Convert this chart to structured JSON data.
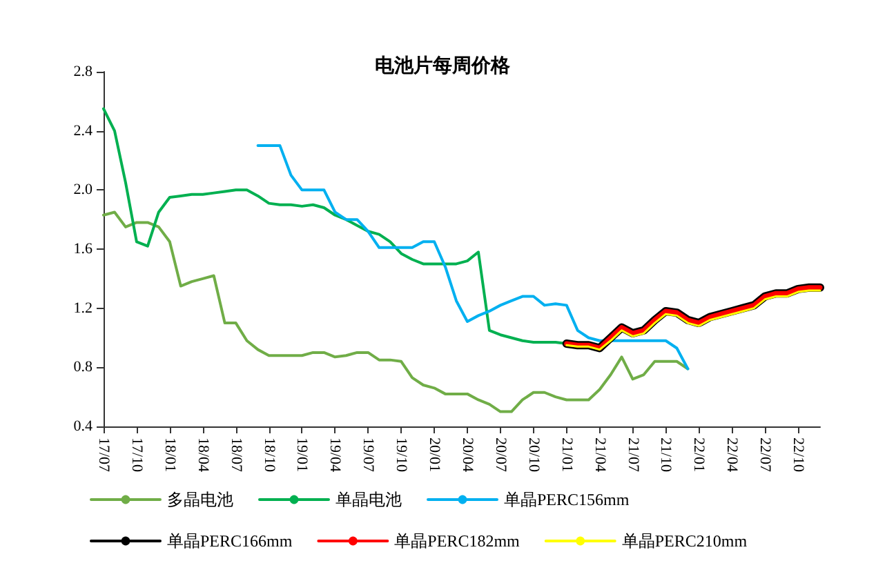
{
  "chart_data": {
    "type": "line",
    "title": "电池片每周价格",
    "categories": [
      "17/07",
      null,
      null,
      "17/10",
      null,
      null,
      "18/01",
      null,
      null,
      "18/04",
      null,
      null,
      "18/07",
      null,
      null,
      "18/10",
      null,
      null,
      "19/01",
      null,
      null,
      "19/04",
      null,
      null,
      "19/07",
      null,
      null,
      "19/10",
      null,
      null,
      "20/01",
      null,
      null,
      "20/04",
      null,
      null,
      "20/07",
      null,
      null,
      "20/10",
      null,
      null,
      "21/01",
      null,
      null,
      "21/04",
      null,
      null,
      "21/07",
      null,
      null,
      "21/10",
      null,
      null,
      "22/01",
      null,
      null,
      "22/04",
      null,
      null,
      "22/07",
      null,
      null,
      "22/10",
      null,
      null
    ],
    "series": [
      {
        "name": "多晶电池",
        "color": "#70ad47",
        "values": [
          1.83,
          1.85,
          1.75,
          1.78,
          1.78,
          1.75,
          1.65,
          1.35,
          1.38,
          1.4,
          1.42,
          1.1,
          1.1,
          0.98,
          0.92,
          0.88,
          0.88,
          0.88,
          0.88,
          0.9,
          0.9,
          0.87,
          0.88,
          0.9,
          0.9,
          0.85,
          0.85,
          0.84,
          0.73,
          0.68,
          0.66,
          0.62,
          0.62,
          0.62,
          0.58,
          0.55,
          0.5,
          0.5,
          0.58,
          0.63,
          0.63,
          0.6,
          0.58,
          0.58,
          0.58,
          0.65,
          0.75,
          0.87,
          0.72,
          0.75,
          0.84,
          0.84,
          0.84,
          0.79,
          null,
          null,
          null,
          null,
          null,
          null,
          null,
          null,
          null,
          null,
          null,
          null
        ]
      },
      {
        "name": "单晶电池",
        "color": "#00b050",
        "values": [
          2.55,
          2.4,
          2.05,
          1.65,
          1.62,
          1.85,
          1.95,
          1.96,
          1.97,
          1.97,
          1.98,
          1.99,
          2.0,
          2.0,
          1.96,
          1.91,
          1.9,
          1.9,
          1.89,
          1.9,
          1.88,
          1.83,
          1.8,
          1.76,
          1.72,
          1.7,
          1.65,
          1.57,
          1.53,
          1.5,
          1.5,
          1.5,
          1.5,
          1.52,
          1.58,
          1.05,
          1.02,
          1.0,
          0.98,
          0.97,
          0.97,
          0.97,
          0.96,
          null,
          null,
          null,
          null,
          null,
          null,
          null,
          null,
          null,
          null,
          null,
          null,
          null,
          null,
          null,
          null,
          null,
          null,
          null,
          null,
          null,
          null,
          null
        ]
      },
      {
        "name": "单晶PERC156mm",
        "color": "#00b0f0",
        "values": [
          null,
          null,
          null,
          null,
          null,
          null,
          null,
          null,
          null,
          null,
          null,
          null,
          null,
          null,
          2.3,
          2.3,
          2.3,
          2.1,
          2.0,
          2.0,
          2.0,
          1.85,
          1.8,
          1.8,
          1.72,
          1.61,
          1.61,
          1.61,
          1.61,
          1.65,
          1.65,
          1.48,
          1.25,
          1.11,
          1.15,
          1.18,
          1.22,
          1.25,
          1.28,
          1.28,
          1.22,
          1.23,
          1.22,
          1.05,
          1.0,
          0.98,
          0.98,
          0.98,
          0.98,
          0.98,
          0.98,
          0.98,
          0.93,
          0.79,
          null,
          null,
          null,
          null,
          null,
          null,
          null,
          null,
          null,
          null,
          null,
          null
        ]
      },
      {
        "name": "单晶PERC166mm",
        "color": "#000000",
        "values": [
          null,
          null,
          null,
          null,
          null,
          null,
          null,
          null,
          null,
          null,
          null,
          null,
          null,
          null,
          null,
          null,
          null,
          null,
          null,
          null,
          null,
          null,
          null,
          null,
          null,
          null,
          null,
          null,
          null,
          null,
          null,
          null,
          null,
          null,
          null,
          null,
          null,
          null,
          null,
          null,
          null,
          null,
          0.96,
          0.95,
          0.95,
          0.93,
          1.0,
          1.07,
          1.03,
          1.05,
          1.12,
          1.18,
          1.17,
          1.12,
          1.1,
          1.14,
          1.16,
          1.18,
          1.2,
          1.22,
          1.28,
          1.3,
          1.3,
          1.33,
          1.34,
          1.34
        ]
      },
      {
        "name": "单晶PERC182mm",
        "color": "#ff0000",
        "values": [
          null,
          null,
          null,
          null,
          null,
          null,
          null,
          null,
          null,
          null,
          null,
          null,
          null,
          null,
          null,
          null,
          null,
          null,
          null,
          null,
          null,
          null,
          null,
          null,
          null,
          null,
          null,
          null,
          null,
          null,
          null,
          null,
          null,
          null,
          null,
          null,
          null,
          null,
          null,
          null,
          null,
          null,
          0.96,
          0.95,
          0.95,
          0.93,
          1.0,
          1.07,
          1.03,
          1.05,
          1.12,
          1.18,
          1.17,
          1.12,
          1.1,
          1.14,
          1.16,
          1.18,
          1.2,
          1.22,
          1.28,
          1.3,
          1.3,
          1.33,
          1.34,
          1.34
        ]
      },
      {
        "name": "单晶PERC210mm",
        "color": "#ffff00",
        "values": [
          null,
          null,
          null,
          null,
          null,
          null,
          null,
          null,
          null,
          null,
          null,
          null,
          null,
          null,
          null,
          null,
          null,
          null,
          null,
          null,
          null,
          null,
          null,
          null,
          null,
          null,
          null,
          null,
          null,
          null,
          null,
          null,
          null,
          null,
          null,
          null,
          null,
          null,
          null,
          null,
          null,
          null,
          0.95,
          0.94,
          0.94,
          0.92,
          0.98,
          1.05,
          1.01,
          1.03,
          1.1,
          1.16,
          1.15,
          1.1,
          1.08,
          1.12,
          1.14,
          1.16,
          1.18,
          1.2,
          1.26,
          1.28,
          1.28,
          1.31,
          1.32,
          1.32
        ]
      }
    ],
    "ylim": [
      0.4,
      2.8
    ],
    "yticks": [
      0.4,
      0.8,
      {
        "value": 1.2,
        "label": "1.2"
      },
      1.6,
      {
        "value": 2,
        "label": "2.0"
      },
      2.4,
      2.8
    ],
    "grid": false,
    "legend": "bottom",
    "marker": "none",
    "line_style": "solid"
  }
}
